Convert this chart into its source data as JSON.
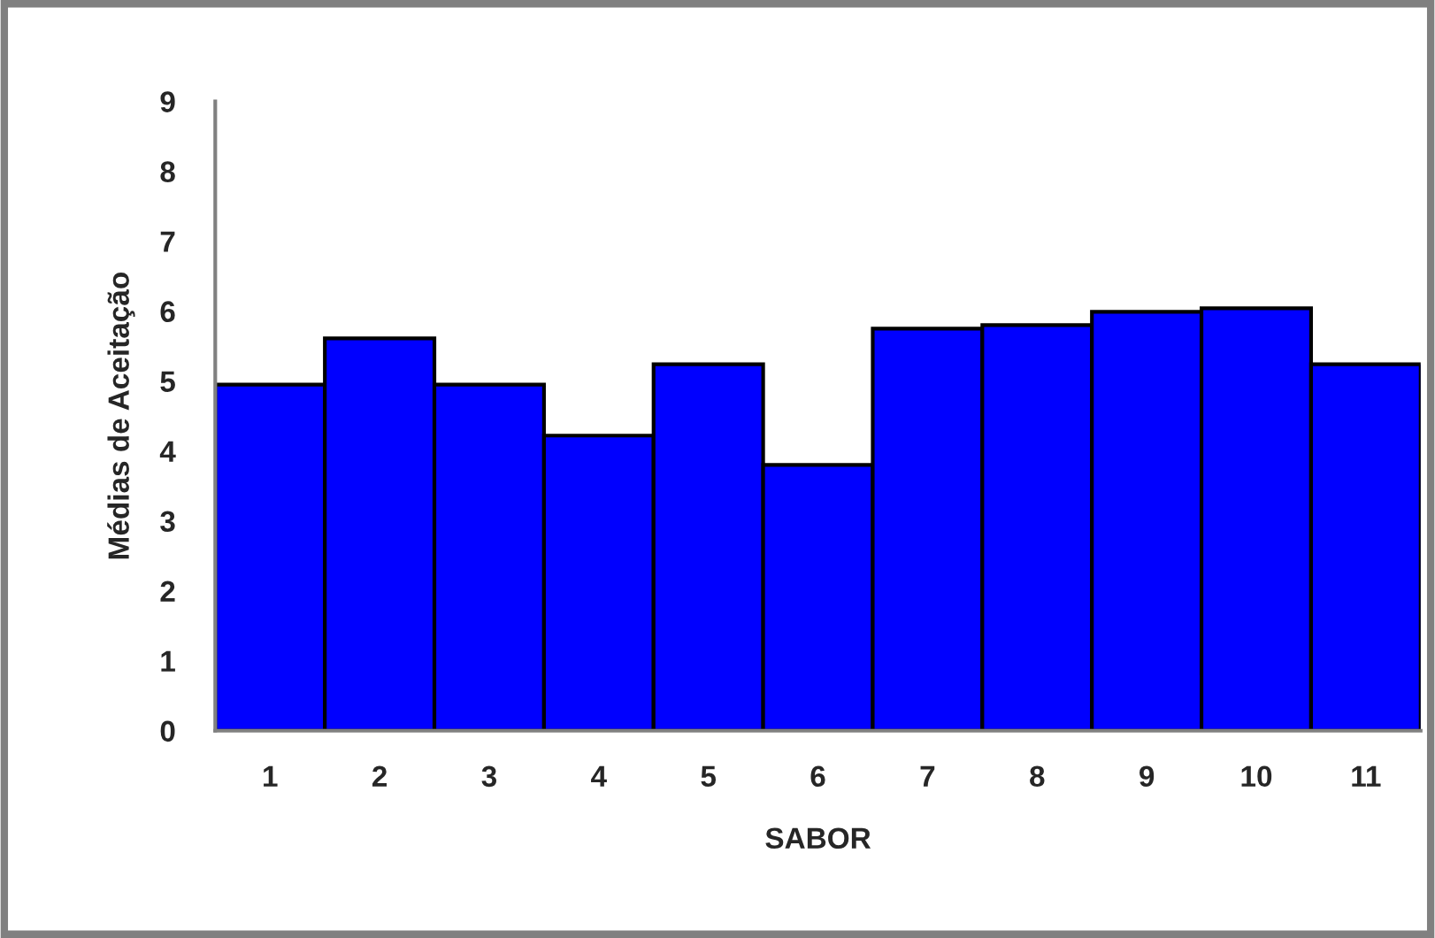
{
  "chart_data": {
    "type": "bar",
    "xlabel": "SABOR",
    "ylabel": "Médias de Aceitação",
    "categories": [
      "1",
      "2",
      "3",
      "4",
      "5",
      "6",
      "7",
      "8",
      "9",
      "10",
      "11"
    ],
    "values": [
      4.95,
      5.61,
      4.95,
      4.22,
      5.24,
      3.8,
      5.75,
      5.8,
      5.99,
      6.04,
      5.24
    ],
    "color": "#0000ff",
    "ylim": [
      0,
      9
    ],
    "yticks": [
      0,
      1,
      2,
      3,
      4,
      5,
      6,
      7,
      8,
      9
    ],
    "grid": false,
    "legend": false
  }
}
